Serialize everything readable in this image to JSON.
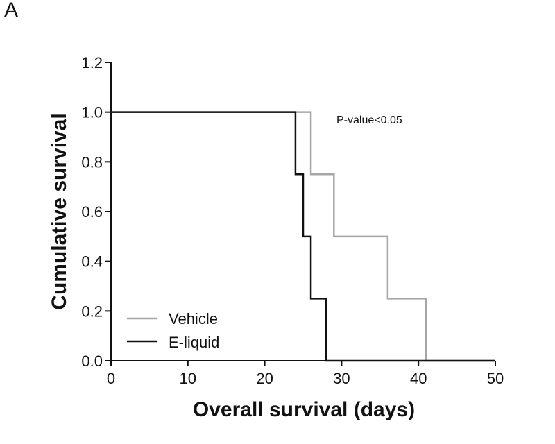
{
  "panel_label": "A",
  "chart_data": {
    "type": "line",
    "step": true,
    "title": "",
    "xlabel": "Overall survival (days)",
    "ylabel": "Cumulative survival",
    "xlim": [
      0,
      50
    ],
    "ylim": [
      0,
      1.2
    ],
    "x_ticks": [
      "0",
      "10",
      "20",
      "30",
      "40",
      "50"
    ],
    "y_ticks": [
      "0.0",
      "0.2",
      "0.4",
      "0.6",
      "0.8",
      "1.0",
      "1.2"
    ],
    "grid": false,
    "legend_position": "bottom-left",
    "annotation": "P-value<0.05",
    "series": [
      {
        "name": "Vehicle",
        "color": "#a6a6a6",
        "x": [
          0,
          26,
          29,
          36,
          41
        ],
        "y": [
          1.0,
          0.75,
          0.5,
          0.25,
          0.0
        ]
      },
      {
        "name": "E-liquid",
        "color": "#111111",
        "x": [
          0,
          24,
          25,
          26,
          28
        ],
        "y": [
          1.0,
          0.75,
          0.5,
          0.25,
          0.0
        ]
      }
    ]
  }
}
